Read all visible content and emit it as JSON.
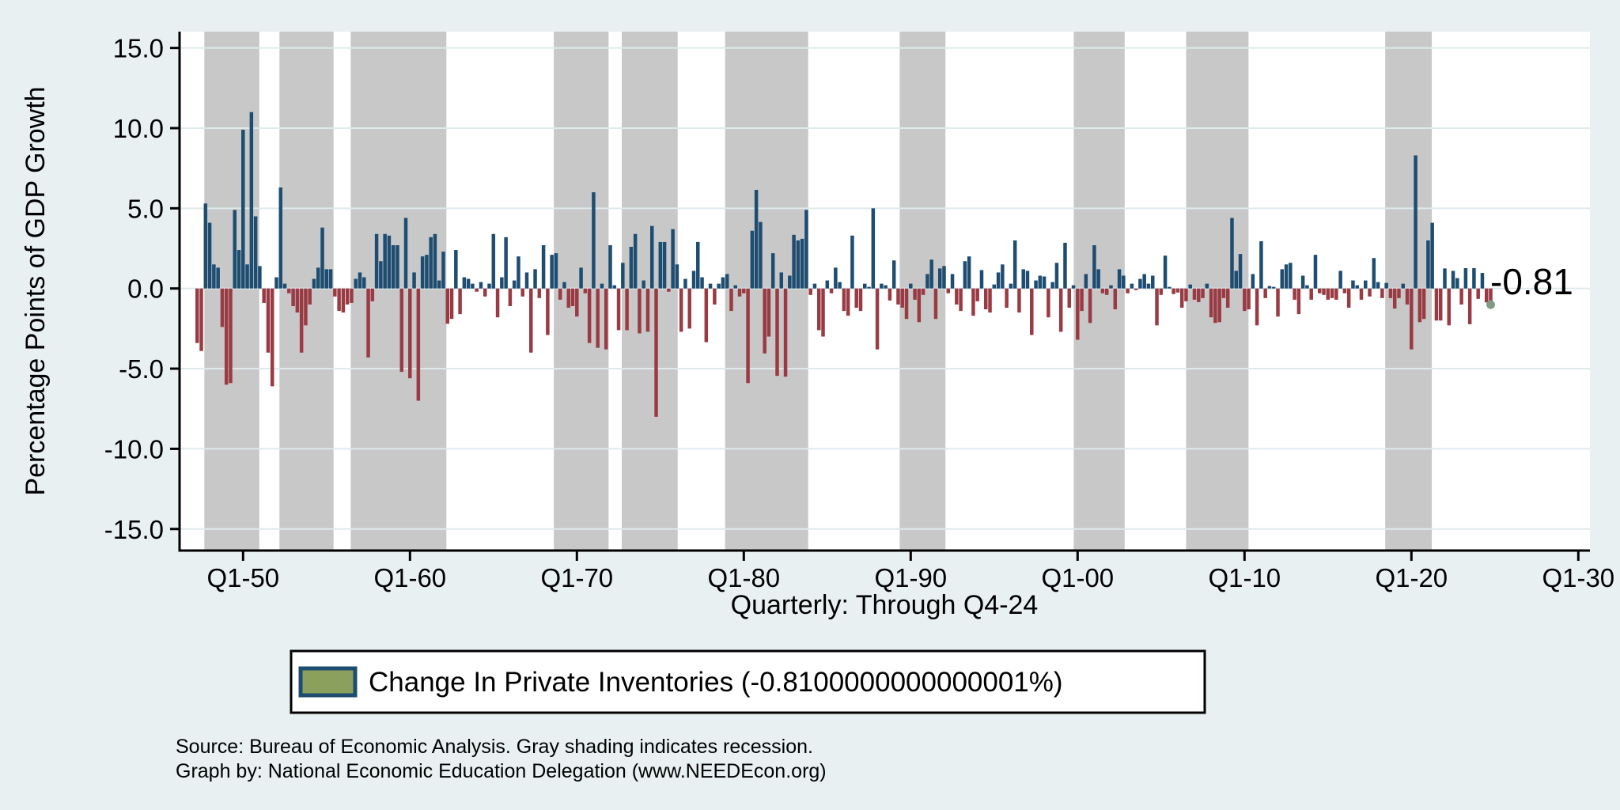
{
  "figure": {
    "y_axis": {
      "title": "Percentage Points of GDP Growth",
      "tick_labels": [
        "15.0",
        "10.0",
        "5.0",
        "0.0",
        "-5.0",
        "-10.0",
        "-15.0"
      ],
      "tick_values": [
        15,
        10,
        5,
        0,
        -5,
        -10,
        -15
      ]
    },
    "x_axis": {
      "title": "Quarterly: Through Q4-24",
      "tick_labels": [
        "Q1-50",
        "Q1-60",
        "Q1-70",
        "Q1-80",
        "Q1-90",
        "Q1-00",
        "Q1-10",
        "Q1-20",
        "Q1-30"
      ],
      "tick_years": [
        1950,
        1960,
        1970,
        1980,
        1990,
        2000,
        2010,
        2020,
        2030
      ]
    },
    "annotation_last_value": "-0.81",
    "legend": {
      "label": "Change In Private Inventories (-0.8100000000000001%)"
    },
    "source_line1": "Source: Bureau of Economic Analysis. Gray shading indicates recession.",
    "source_line2": "Graph by: National Economic Education Delegation (www.NEEDEcon.org)",
    "colors": {
      "background": "#e8f0f2",
      "plot_background": "#ffffff",
      "gridline": "#dfeaec",
      "axis": "#000000",
      "positive_bar": "#1e4d72",
      "negative_bar": "#9a3b44",
      "recession_band": "#c8c8c8",
      "legend_swatch_fill": "#8ba05c",
      "legend_swatch_border": "#1e4d72",
      "end_marker": "#7f9d85"
    }
  },
  "chart_data": {
    "type": "bar",
    "title": "",
    "xlabel": "Quarterly: Through Q4-24",
    "ylabel": "Percentage Points of GDP Growth",
    "ylim": [
      -15,
      15
    ],
    "y_tick_interval": 5,
    "grid": true,
    "legend_position": "bottom",
    "x_start_quarter": "1947Q2",
    "x_step_years": 0.25,
    "x_axis_tick_format": "Q1-YY",
    "note": "gray shading indicates recession",
    "series": [
      {
        "name": "Change In Private Inventories",
        "last_value_label": "-0.81",
        "values": [
          -3.4,
          -3.9,
          5.3,
          4.1,
          1.5,
          1.3,
          -2.4,
          -6.0,
          -5.9,
          4.9,
          2.4,
          9.9,
          1.5,
          11.0,
          4.5,
          1.4,
          -0.9,
          -4.0,
          -6.1,
          0.7,
          6.3,
          0.3,
          -0.3,
          -1.1,
          -1.5,
          -4.0,
          -2.3,
          -1.0,
          0.6,
          1.3,
          3.8,
          1.2,
          1.2,
          -0.5,
          -1.4,
          -1.5,
          -1.0,
          -0.9,
          0.6,
          1.0,
          0.7,
          -4.3,
          -0.8,
          3.4,
          1.7,
          3.4,
          3.3,
          2.7,
          2.7,
          -5.2,
          4.4,
          -5.6,
          1.0,
          -7.0,
          2.0,
          2.1,
          3.2,
          3.4,
          0.5,
          2.3,
          -2.2,
          -1.9,
          2.4,
          -1.6,
          0.7,
          0.6,
          0.3,
          -0.2,
          0.4,
          -0.5,
          0.3,
          3.4,
          -1.8,
          0.7,
          3.2,
          -1.1,
          0.5,
          2.0,
          -0.5,
          1.0,
          -4.0,
          1.2,
          -0.6,
          2.7,
          -2.9,
          2.1,
          2.2,
          -0.7,
          0.4,
          -1.2,
          -1.1,
          -1.75,
          1.3,
          -0.3,
          -3.4,
          6.0,
          -3.7,
          0.3,
          -3.8,
          2.7,
          0.2,
          -2.6,
          1.6,
          -2.6,
          2.6,
          3.4,
          -2.8,
          0.5,
          -2.7,
          3.9,
          -8.0,
          2.9,
          2.9,
          -0.2,
          3.7,
          1.5,
          -2.7,
          0.6,
          -2.5,
          1.1,
          2.9,
          0.7,
          -3.35,
          0.3,
          -1.0,
          0.3,
          0.7,
          0.9,
          -1.4,
          0.2,
          -0.5,
          -0.3,
          -5.9,
          3.6,
          6.15,
          4.15,
          -4.05,
          -3.0,
          2.2,
          -5.45,
          1.0,
          -5.5,
          0.8,
          3.35,
          3.0,
          3.1,
          4.9,
          -0.4,
          0.3,
          -2.6,
          -3.0,
          0.5,
          -0.3,
          1.3,
          0.4,
          -1.4,
          -1.7,
          3.3,
          -1.2,
          -1.4,
          0.3,
          0.1,
          5.0,
          -3.8,
          0.3,
          0.2,
          -0.75,
          1.75,
          -1.0,
          -1.2,
          -1.9,
          0.3,
          -0.7,
          -2.1,
          -0.4,
          0.9,
          1.8,
          -1.9,
          1.25,
          1.4,
          -0.3,
          0.9,
          -1.0,
          -1.4,
          1.7,
          2.0,
          -1.7,
          -0.8,
          1.15,
          -1.3,
          -1.5,
          0.25,
          1.0,
          1.5,
          -1.2,
          0.3,
          3.0,
          -1.5,
          1.2,
          1.1,
          -2.9,
          0.5,
          0.8,
          0.75,
          -1.8,
          0.4,
          1.6,
          -2.7,
          2.85,
          -1.2,
          0.2,
          -3.2,
          -1.4,
          0.9,
          -2.15,
          2.7,
          1.2,
          -0.3,
          -0.4,
          0.2,
          -1.3,
          1.2,
          0.8,
          -0.3,
          0.3,
          -0.1,
          0.6,
          0.9,
          0.3,
          0.8,
          -2.3,
          -0.4,
          2.05,
          0.1,
          -0.35,
          -0.25,
          -1.2,
          -0.8,
          0.25,
          -0.7,
          -0.85,
          -0.6,
          0.3,
          -1.8,
          -2.15,
          -2.1,
          -0.6,
          -1.2,
          4.4,
          1.1,
          2.15,
          -1.4,
          -1.3,
          0.9,
          -2.3,
          2.95,
          -0.6,
          0.15,
          0.1,
          -1.75,
          1.2,
          1.5,
          1.6,
          -0.7,
          -1.6,
          0.8,
          0.2,
          -0.7,
          2.1,
          -0.3,
          -0.4,
          -0.7,
          -0.6,
          -0.7,
          1.1,
          -0.3,
          -1.2,
          0.5,
          0.2,
          -0.7,
          0.5,
          -0.5,
          1.9,
          0.4,
          -0.6,
          0.35,
          -0.6,
          -1.25,
          -0.6,
          0.3,
          -1.0,
          -3.8,
          8.3,
          -2.1,
          -1.9,
          3.0,
          4.1,
          -2.0,
          -2.0,
          1.25,
          -2.3,
          1.1,
          0.65,
          -1.0,
          1.27,
          -2.23,
          1.27,
          -0.65,
          0.97,
          -0.87,
          -0.81
        ]
      }
    ],
    "recession_bands_years": [
      [
        1947.68,
        1950.97
      ],
      [
        1952.18,
        1955.42
      ],
      [
        1956.45,
        1962.18
      ],
      [
        1968.62,
        1971.9
      ],
      [
        1972.69,
        1976.04
      ],
      [
        1978.88,
        1983.86
      ],
      [
        1989.34,
        1992.08
      ],
      [
        1999.77,
        2002.82
      ],
      [
        2006.5,
        2010.24
      ],
      [
        2018.43,
        2021.22
      ]
    ]
  }
}
